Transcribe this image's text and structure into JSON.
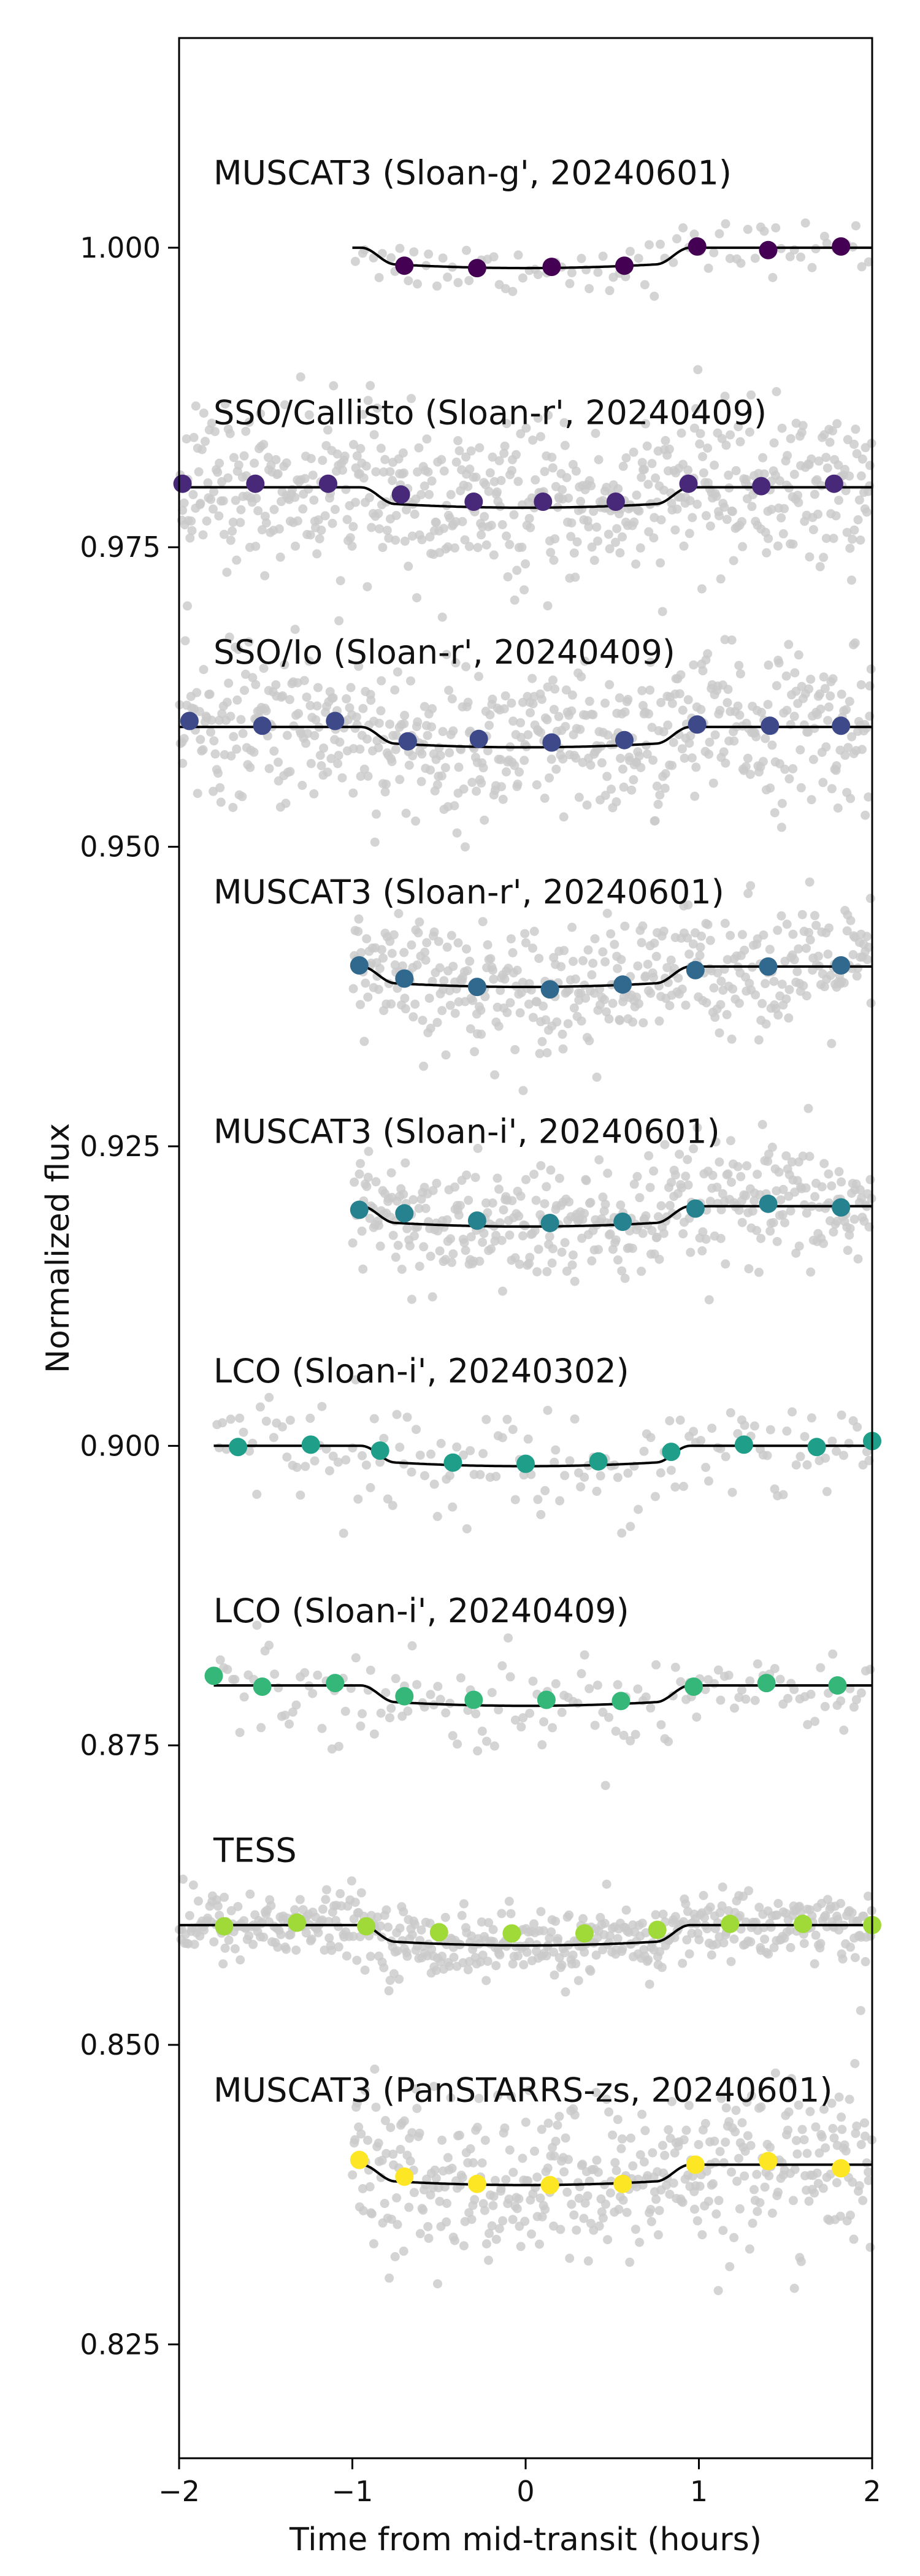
{
  "chart_data": {
    "type": "scatter",
    "title": "",
    "xlabel": "Time from mid-transit (hours)",
    "ylabel": "Normalized flux",
    "xlim": [
      -2,
      2
    ],
    "ylim": [
      0.8155,
      1.0175
    ],
    "xticks": [
      -2,
      -1,
      0,
      1,
      2
    ],
    "xtick_labels": [
      "−2",
      "−1",
      "0",
      "1",
      "2"
    ],
    "yticks": [
      0.825,
      0.85,
      0.875,
      0.9,
      0.925,
      0.95,
      0.975,
      1.0
    ],
    "ytick_labels": [
      "0.825",
      "0.850",
      "0.875",
      "0.900",
      "0.925",
      "0.950",
      "0.975",
      "1.000"
    ],
    "grid": false,
    "transit": {
      "depth": 0.0017,
      "t1": -0.95,
      "t2": -0.75,
      "t3": 0.75,
      "t4": 0.95
    },
    "series": [
      {
        "name": "MUSCAT3 (Sloan-g', 20240601)",
        "offset": 1.0,
        "color": "#440154",
        "x_start": -1.0,
        "x_end": 2.0,
        "raw_count": 90,
        "scatter": 0.0011,
        "binned_x": [
          -0.7,
          -0.28,
          0.15,
          0.57,
          0.99,
          1.4,
          1.82
        ],
        "binned_y": [
          0.9985,
          0.9983,
          0.9984,
          0.9985,
          1.0001,
          0.9998,
          1.0001
        ]
      },
      {
        "name": "SSO/Callisto (Sloan-r', 20240409)",
        "offset": 0.98,
        "color": "#482878",
        "x_start": -2.0,
        "x_end": 2.0,
        "raw_count": 620,
        "scatter": 0.0032,
        "binned_x": [
          -1.98,
          -1.56,
          -1.14,
          -0.72,
          -0.3,
          0.1,
          0.52,
          0.94,
          1.36,
          1.78
        ],
        "binned_y": [
          0.9803,
          0.9803,
          0.9803,
          0.9794,
          0.9788,
          0.9788,
          0.9788,
          0.9803,
          0.9801,
          0.9803
        ]
      },
      {
        "name": "SSO/Io (Sloan-r', 20240409)",
        "offset": 0.96,
        "color": "#3e4989",
        "x_start": -2.0,
        "x_end": 2.0,
        "raw_count": 600,
        "scatter": 0.0032,
        "binned_x": [
          -1.94,
          -1.52,
          -1.1,
          -0.68,
          -0.27,
          0.15,
          0.57,
          0.99,
          1.41,
          1.82
        ],
        "binned_y": [
          0.9605,
          0.9601,
          0.9605,
          0.9588,
          0.959,
          0.9587,
          0.9589,
          0.9602,
          0.9601,
          0.9601
        ]
      },
      {
        "name": "MUSCAT3 (Sloan-r', 20240601)",
        "offset": 0.94,
        "color": "#31688e",
        "x_start": -1.0,
        "x_end": 2.0,
        "raw_count": 420,
        "scatter": 0.0026,
        "binned_x": [
          -0.96,
          -0.7,
          -0.28,
          0.14,
          0.56,
          0.98,
          1.4,
          1.82
        ],
        "binned_y": [
          0.9401,
          0.939,
          0.9383,
          0.9381,
          0.9385,
          0.9397,
          0.94,
          0.9401
        ]
      },
      {
        "name": "MUSCAT3 (Sloan-i', 20240601)",
        "offset": 0.92,
        "color": "#26828e",
        "x_start": -1.0,
        "x_end": 2.0,
        "raw_count": 420,
        "scatter": 0.0026,
        "binned_x": [
          -0.96,
          -0.7,
          -0.28,
          0.14,
          0.56,
          0.98,
          1.4,
          1.82
        ],
        "binned_y": [
          0.9197,
          0.9194,
          0.9188,
          0.9186,
          0.9187,
          0.9198,
          0.9202,
          0.9199
        ]
      },
      {
        "name": "LCO (Sloan-i', 20240302)",
        "offset": 0.9,
        "color": "#1f9e89",
        "x_start": -1.8,
        "x_end": 2.0,
        "raw_count": 160,
        "scatter": 0.0022,
        "binned_x": [
          -1.66,
          -1.24,
          -0.84,
          -0.42,
          0.0,
          0.42,
          0.84,
          1.26,
          1.68,
          2.0
        ],
        "binned_y": [
          0.8999,
          0.9001,
          0.8996,
          0.8986,
          0.8985,
          0.8987,
          0.8995,
          0.9001,
          0.8999,
          0.9004
        ]
      },
      {
        "name": "LCO (Sloan-i', 20240409)",
        "offset": 0.88,
        "color": "#35b779",
        "x_start": -1.8,
        "x_end": 2.0,
        "raw_count": 160,
        "scatter": 0.002,
        "binned_x": [
          -1.8,
          -1.52,
          -1.1,
          -0.7,
          -0.3,
          0.12,
          0.55,
          0.97,
          1.39,
          1.8
        ],
        "binned_y": [
          0.8808,
          0.8799,
          0.8802,
          0.8791,
          0.8788,
          0.8788,
          0.8787,
          0.8799,
          0.8802,
          0.88
        ]
      },
      {
        "name": "TESS",
        "offset": 0.86,
        "color": "#a0da39",
        "x_start": -2.0,
        "x_end": 2.0,
        "raw_count": 560,
        "scatter": 0.0014,
        "binned_x": [
          -1.74,
          -1.32,
          -0.92,
          -0.5,
          -0.08,
          0.34,
          0.76,
          1.18,
          1.6,
          2.0
        ],
        "binned_y": [
          0.8599,
          0.8602,
          0.8599,
          0.8594,
          0.8593,
          0.8593,
          0.8596,
          0.8601,
          0.8601,
          0.86
        ]
      },
      {
        "name": "MUSCAT3 (PanSTARRS-zs, 20240601)",
        "offset": 0.84,
        "color": "#fde725",
        "x_start": -1.0,
        "x_end": 2.0,
        "raw_count": 430,
        "scatter": 0.0034,
        "binned_x": [
          -0.96,
          -0.7,
          -0.28,
          0.14,
          0.56,
          0.98,
          1.4,
          1.82
        ],
        "binned_y": [
          0.8404,
          0.839,
          0.8384,
          0.8383,
          0.8384,
          0.84,
          0.8403,
          0.8397
        ]
      }
    ]
  }
}
